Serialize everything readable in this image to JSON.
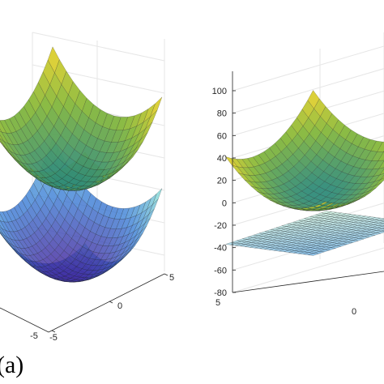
{
  "panel_label": "(a)",
  "chart_data": [
    {
      "type": "surface",
      "title": "",
      "xlabel": "",
      "ylabel": "",
      "zlabel": "",
      "x_ticks": [
        "-5",
        "0",
        "5"
      ],
      "y_ticks": [
        "-5"
      ],
      "grid": true,
      "series": [
        {
          "surface": "upper",
          "colormap": "green-yellow",
          "formula": "z = x^2 + y^2 + 50",
          "visible_partial": true
        },
        {
          "surface": "lower",
          "colormap": "blue-violet",
          "formula": "z = x^2 + y^2",
          "visible_partial": true
        }
      ]
    },
    {
      "type": "surface",
      "title": "",
      "xlabel": "",
      "ylabel": "",
      "zlabel": "",
      "z_ticks": [
        "100",
        "80",
        "60",
        "40",
        "20",
        "0",
        "-20",
        "-40",
        "-60",
        "-80"
      ],
      "zlim": [
        -80,
        100
      ],
      "x_ticks": [
        "5",
        "0"
      ],
      "grid": true,
      "series": [
        {
          "surface": "upper",
          "colormap": "green-yellow",
          "formula": "z = x^2 + y^2 + 40"
        },
        {
          "surface": "lower",
          "colormap": "cyan-blue",
          "formula": "z = 10(x + y)",
          "transparent": true
        }
      ]
    }
  ],
  "colors": {
    "axis": "#262626",
    "grid": "#e6e6e6",
    "upper_low": "#3a9a6a",
    "upper_high": "#f1d32a",
    "lower_low": "#3a2a9a",
    "lower_high": "#7fe0d0"
  }
}
